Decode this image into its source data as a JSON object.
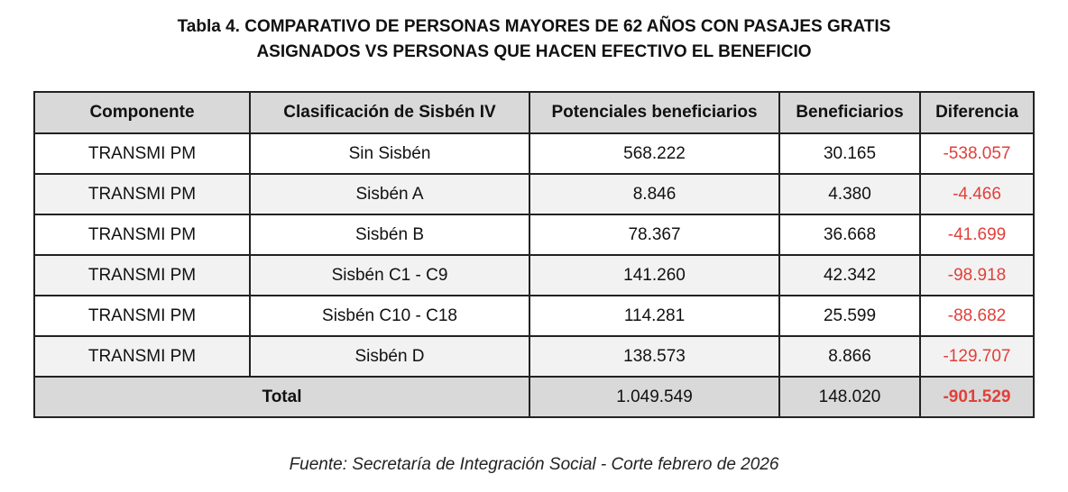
{
  "title": {
    "line1": "Tabla 4. COMPARATIVO DE PERSONAS MAYORES DE 62 AÑOS CON PASAJES GRATIS",
    "line2": "ASIGNADOS VS PERSONAS QUE HACEN EFECTIVO EL BENEFICIO"
  },
  "headers": {
    "componente": "Componente",
    "clasificacion": "Clasificación de Sisbén IV",
    "potenciales": "Potenciales beneficiarios",
    "beneficiarios": "Beneficiarios",
    "diferencia": "Diferencia"
  },
  "rows": [
    {
      "componente": "TRANSMI PM",
      "clasificacion": "Sin Sisbén",
      "potenciales": "568.222",
      "beneficiarios": "30.165",
      "diferencia": "-538.057"
    },
    {
      "componente": "TRANSMI PM",
      "clasificacion": "Sisbén A",
      "potenciales": "8.846",
      "beneficiarios": "4.380",
      "diferencia": "-4.466"
    },
    {
      "componente": "TRANSMI PM",
      "clasificacion": "Sisbén B",
      "potenciales": "78.367",
      "beneficiarios": "36.668",
      "diferencia": "-41.699"
    },
    {
      "componente": "TRANSMI PM",
      "clasificacion": "Sisbén C1 - C9",
      "potenciales": "141.260",
      "beneficiarios": "42.342",
      "diferencia": "-98.918"
    },
    {
      "componente": "TRANSMI PM",
      "clasificacion": "Sisbén C10 - C18",
      "potenciales": "114.281",
      "beneficiarios": "25.599",
      "diferencia": "-88.682"
    },
    {
      "componente": "TRANSMI PM",
      "clasificacion": "Sisbén D",
      "potenciales": "138.573",
      "beneficiarios": "8.866",
      "diferencia": "-129.707"
    }
  ],
  "total": {
    "label": "Total",
    "potenciales": "1.049.549",
    "beneficiarios": "148.020",
    "diferencia": "-901.529"
  },
  "source": "Fuente: Secretaría de Integración Social - Corte febrero de 2026",
  "colors": {
    "header_bg": "#d9d9d9",
    "alt_row_bg": "#f2f2f2",
    "negative_text": "#e0403a"
  }
}
